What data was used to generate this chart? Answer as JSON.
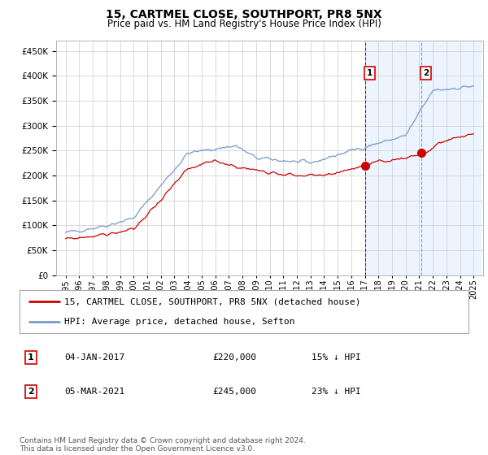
{
  "title": "15, CARTMEL CLOSE, SOUTHPORT, PR8 5NX",
  "subtitle": "Price paid vs. HM Land Registry's House Price Index (HPI)",
  "ylim": [
    0,
    470000
  ],
  "yticks": [
    0,
    50000,
    100000,
    150000,
    200000,
    250000,
    300000,
    350000,
    400000,
    450000
  ],
  "hpi_color": "#7799cc",
  "price_color": "#cc0000",
  "marker1_x": 2017.03,
  "marker2_x": 2021.17,
  "marker1_price": 220000,
  "marker2_price": 245000,
  "legend_line1": "15, CARTMEL CLOSE, SOUTHPORT, PR8 5NX (detached house)",
  "legend_line2": "HPI: Average price, detached house, Sefton",
  "table_row1": [
    "1",
    "04-JAN-2017",
    "£220,000",
    "15% ↓ HPI"
  ],
  "table_row2": [
    "2",
    "05-MAR-2021",
    "£245,000",
    "23% ↓ HPI"
  ],
  "footnote": "Contains HM Land Registry data © Crown copyright and database right 2024.\nThis data is licensed under the Open Government Licence v3.0.",
  "background_color": "#ffffff",
  "grid_color": "#cccccc",
  "shaded_color": "#ddeeff",
  "title_fontsize": 10,
  "subtitle_fontsize": 8.5,
  "tick_fontsize": 7.5,
  "legend_fontsize": 8,
  "table_fontsize": 8,
  "footnote_fontsize": 6.5
}
